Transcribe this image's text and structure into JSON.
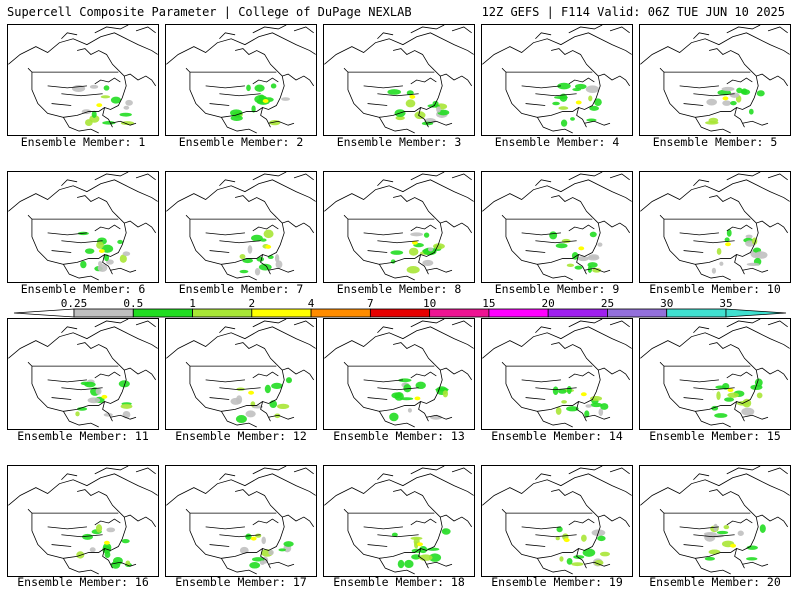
{
  "header": {
    "title": "Supercell Composite Parameter | College of DuPage NEXLAB",
    "run_info": "12Z GEFS | F114 Valid: 06Z TUE JUN 10 2025"
  },
  "members": [
    {
      "label": "Ensemble Member: 1"
    },
    {
      "label": "Ensemble Member: 2"
    },
    {
      "label": "Ensemble Member: 3"
    },
    {
      "label": "Ensemble Member: 4"
    },
    {
      "label": "Ensemble Member: 5"
    },
    {
      "label": "Ensemble Member: 6"
    },
    {
      "label": "Ensemble Member: 7"
    },
    {
      "label": "Ensemble Member: 8"
    },
    {
      "label": "Ensemble Member: 9"
    },
    {
      "label": "Ensemble Member: 10"
    },
    {
      "label": "Ensemble Member: 11"
    },
    {
      "label": "Ensemble Member: 12"
    },
    {
      "label": "Ensemble Member: 13"
    },
    {
      "label": "Ensemble Member: 14"
    },
    {
      "label": "Ensemble Member: 15"
    },
    {
      "label": "Ensemble Member: 16"
    },
    {
      "label": "Ensemble Member: 17"
    },
    {
      "label": "Ensemble Member: 18"
    },
    {
      "label": "Ensemble Member: 19"
    },
    {
      "label": "Ensemble Member: 20"
    }
  ],
  "colorbar": {
    "levels": [
      "0.25",
      "0.5",
      "1",
      "2",
      "4",
      "7",
      "10",
      "15",
      "20",
      "25",
      "30",
      "35"
    ],
    "colors": [
      "#ffffff",
      "#c0c0c0",
      "#22dd22",
      "#a8e636",
      "#ffff00",
      "#ff8c00",
      "#e60000",
      "#ee1493",
      "#ff00ff",
      "#a020f0",
      "#9370db",
      "#40e0d0"
    ]
  }
}
